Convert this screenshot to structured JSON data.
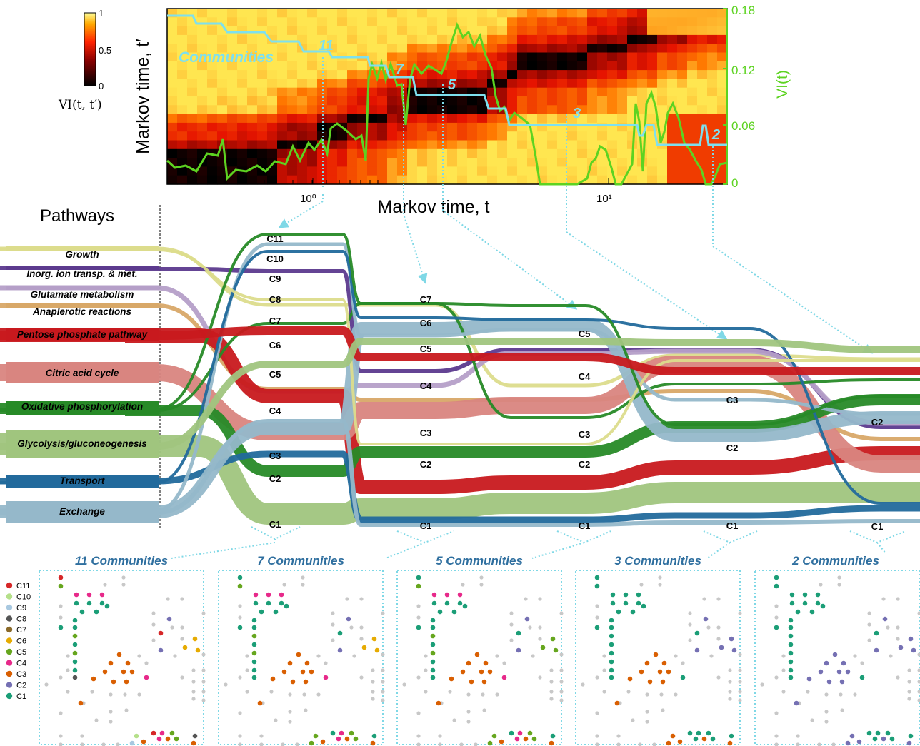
{
  "colorbar": {
    "ticks": [
      "1",
      "0.5",
      "0"
    ],
    "label": "VI(t, t′)"
  },
  "heatmap_panel": {
    "ylabel": "Markov time, t′",
    "xlabel": "Markov time, t",
    "x_ticks": [
      "10⁰",
      "10¹"
    ],
    "y2_label": "VI(t)",
    "y2_ticks": [
      "0.18",
      "0.12",
      "0.06",
      "0"
    ],
    "communities_label": "Communities",
    "step_labels": [
      "11",
      "7",
      "5",
      "3",
      "2"
    ],
    "colors": {
      "vi_line": "#5dd321",
      "communities_line": "#7ee0ee",
      "y2_axis": "#5dd321"
    }
  },
  "sankey": {
    "pathways_title": "Pathways",
    "pathways": [
      {
        "label": "Growth",
        "color": "#dcdc8c"
      },
      {
        "label": "Inorg. ion transp. & met.",
        "color": "#5c3a8e"
      },
      {
        "label": "Glutamate metabolism",
        "color": "#b59fc8"
      },
      {
        "label": "Anaplerotic reactions",
        "color": "#d8a868"
      },
      {
        "label": "Pentose phosphate pathway",
        "color": "#c8191e"
      },
      {
        "label": "Citric acid cycle",
        "color": "#d98580"
      },
      {
        "label": "Oxidative phosphorylation",
        "color": "#278a27"
      },
      {
        "label": "Glycolysis/gluconeogenesis",
        "color": "#a0c57e"
      },
      {
        "label": "Transport",
        "color": "#226a9c"
      },
      {
        "label": "Exchange",
        "color": "#95b8ca"
      }
    ],
    "stage_labels": [
      [
        "C11",
        "C10",
        "C9",
        "C8",
        "C7",
        "C6",
        "C5",
        "C4",
        "C3",
        "C2",
        "C1"
      ],
      [
        "C7",
        "C6",
        "C5",
        "C4",
        "C3",
        "C2",
        "C1"
      ],
      [
        "C5",
        "C4",
        "C3",
        "C2",
        "C1"
      ],
      [
        "C3",
        "C2",
        "C1"
      ],
      [
        "C2",
        "C1"
      ]
    ]
  },
  "network_panels": [
    {
      "title": "11 Communities"
    },
    {
      "title": "7 Communities"
    },
    {
      "title": "5 Communities"
    },
    {
      "title": "3 Communities"
    },
    {
      "title": "2 Communities"
    }
  ],
  "legend": [
    {
      "label": "C11",
      "color": "#d62728"
    },
    {
      "label": "C10",
      "color": "#b5e08a"
    },
    {
      "label": "C9",
      "color": "#a8c8e0"
    },
    {
      "label": "C8",
      "color": "#555555"
    },
    {
      "label": "C7",
      "color": "#8a6a2a"
    },
    {
      "label": "C6",
      "color": "#e6ab02"
    },
    {
      "label": "C5",
      "color": "#66a61e"
    },
    {
      "label": "C4",
      "color": "#e7298a"
    },
    {
      "label": "C3",
      "color": "#d95f02"
    },
    {
      "label": "C2",
      "color": "#7570b3"
    },
    {
      "label": "C1",
      "color": "#1b9e77"
    }
  ]
}
